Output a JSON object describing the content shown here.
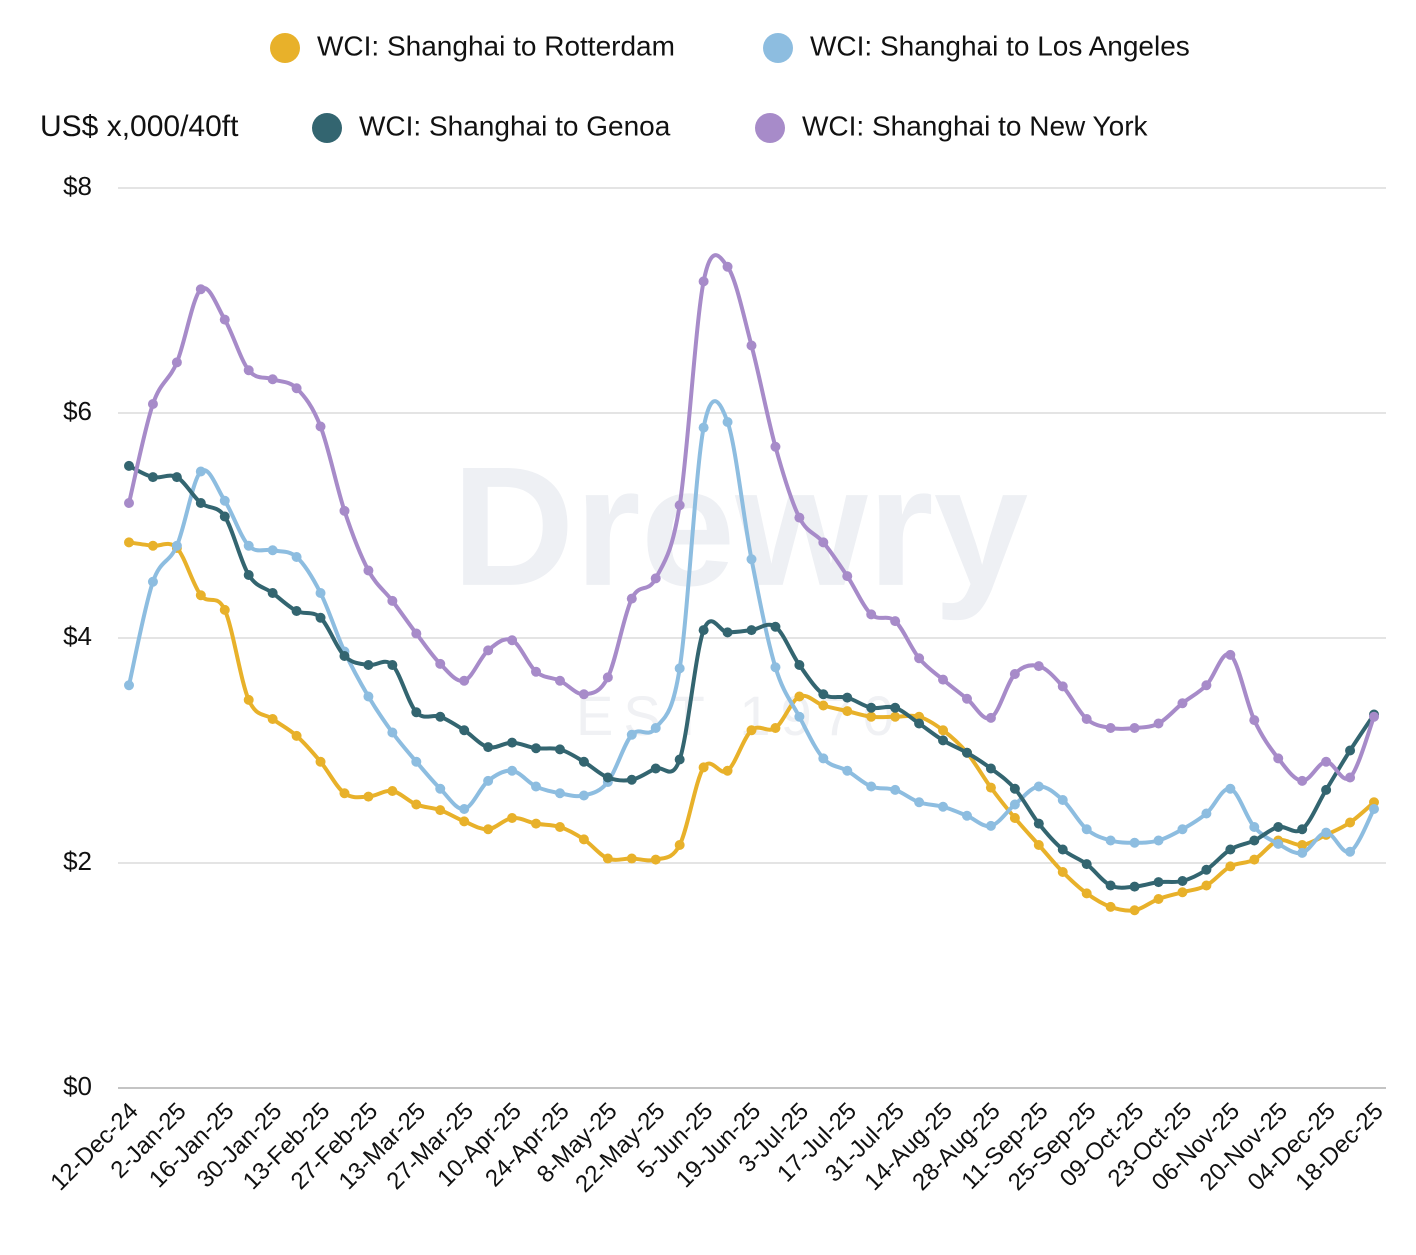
{
  "chart_data": {
    "type": "line",
    "y_axis_label": "US$ x,000/40ft",
    "watermark": "Drewry",
    "watermark_subtitle": "EST 1970",
    "categories": [
      "12-Dec-24",
      null,
      "2-Jan-25",
      null,
      "16-Jan-25",
      null,
      "30-Jan-25",
      null,
      "13-Feb-25",
      null,
      "27-Feb-25",
      null,
      "13-Mar-25",
      null,
      "27-Mar-25",
      null,
      "10-Apr-25",
      null,
      "24-Apr-25",
      null,
      "8-May-25",
      null,
      "22-May-25",
      null,
      "5-Jun-25",
      null,
      "19-Jun-25",
      null,
      "3-Jul-25",
      null,
      "17-Jul-25",
      null,
      "31-Jul-25",
      null,
      "14-Aug-25",
      null,
      "28-Aug-25",
      null,
      "11-Sep-25",
      null,
      "25-Sep-25",
      null,
      "09-Oct-25",
      null,
      "23-Oct-25",
      null,
      "06-Nov-25",
      null,
      "20-Nov-25",
      null,
      "04-Dec-25",
      null,
      "18-Dec-25"
    ],
    "series": [
      {
        "name": "WCI: Shanghai to Rotterdam",
        "color": "#e8b12a",
        "values": [
          4.85,
          4.82,
          4.8,
          4.38,
          4.25,
          3.45,
          3.28,
          3.13,
          2.9,
          2.62,
          2.59,
          2.64,
          2.52,
          2.47,
          2.37,
          2.3,
          2.4,
          2.35,
          2.32,
          2.21,
          2.04,
          2.04,
          2.03,
          2.16,
          2.85,
          2.82,
          3.18,
          3.2,
          3.48,
          3.4,
          3.35,
          3.3,
          3.3,
          3.3,
          3.18,
          2.98,
          2.67,
          2.4,
          2.16,
          1.92,
          1.73,
          1.61,
          1.58,
          1.68,
          1.74,
          1.8,
          1.97,
          2.03,
          2.2,
          2.16,
          2.25,
          2.36,
          2.54
        ]
      },
      {
        "name": "WCI: Shanghai to Los Angeles",
        "color": "#8dbde0",
        "values": [
          3.58,
          4.5,
          4.82,
          5.48,
          5.22,
          4.82,
          4.78,
          4.72,
          4.4,
          3.88,
          3.48,
          3.16,
          2.9,
          2.66,
          2.48,
          2.73,
          2.82,
          2.68,
          2.62,
          2.6,
          2.72,
          3.14,
          3.2,
          3.73,
          5.87,
          5.92,
          4.7,
          3.74,
          3.3,
          2.93,
          2.82,
          2.68,
          2.65,
          2.54,
          2.5,
          2.42,
          2.33,
          2.52,
          2.68,
          2.56,
          2.3,
          2.2,
          2.18,
          2.2,
          2.3,
          2.44,
          2.66,
          2.32,
          2.17,
          2.09,
          2.27,
          2.1,
          2.48
        ]
      },
      {
        "name": "WCI: Shanghai to Genoa",
        "color": "#336570",
        "values": [
          5.53,
          5.43,
          5.43,
          5.2,
          5.08,
          4.56,
          4.4,
          4.24,
          4.18,
          3.84,
          3.76,
          3.76,
          3.34,
          3.3,
          3.18,
          3.03,
          3.07,
          3.02,
          3.01,
          2.9,
          2.76,
          2.74,
          2.84,
          2.92,
          4.07,
          4.05,
          4.07,
          4.1,
          3.76,
          3.5,
          3.47,
          3.38,
          3.38,
          3.24,
          3.09,
          2.98,
          2.84,
          2.66,
          2.35,
          2.12,
          1.99,
          1.8,
          1.79,
          1.83,
          1.84,
          1.94,
          2.12,
          2.2,
          2.32,
          2.3,
          2.65,
          3.0,
          3.32
        ]
      },
      {
        "name": "WCI: Shanghai to New York",
        "color": "#a78bc9",
        "values": [
          5.2,
          6.08,
          6.45,
          7.1,
          6.83,
          6.38,
          6.3,
          6.22,
          5.88,
          5.13,
          4.6,
          4.33,
          4.04,
          3.77,
          3.62,
          3.89,
          3.98,
          3.7,
          3.62,
          3.5,
          3.65,
          4.35,
          4.53,
          5.18,
          7.17,
          7.3,
          6.6,
          5.7,
          5.07,
          4.85,
          4.55,
          4.21,
          4.15,
          3.82,
          3.63,
          3.46,
          3.29,
          3.68,
          3.75,
          3.57,
          3.28,
          3.2,
          3.2,
          3.24,
          3.42,
          3.58,
          3.85,
          3.27,
          2.93,
          2.73,
          2.9,
          2.76,
          3.3
        ]
      }
    ],
    "ylim": [
      0,
      8
    ],
    "yticks": [
      {
        "value": 0,
        "label": "$0"
      },
      {
        "value": 2,
        "label": "$2"
      },
      {
        "value": 4,
        "label": "$4"
      },
      {
        "value": 6,
        "label": "$6"
      },
      {
        "value": 8,
        "label": "$8"
      }
    ],
    "grid": true
  }
}
